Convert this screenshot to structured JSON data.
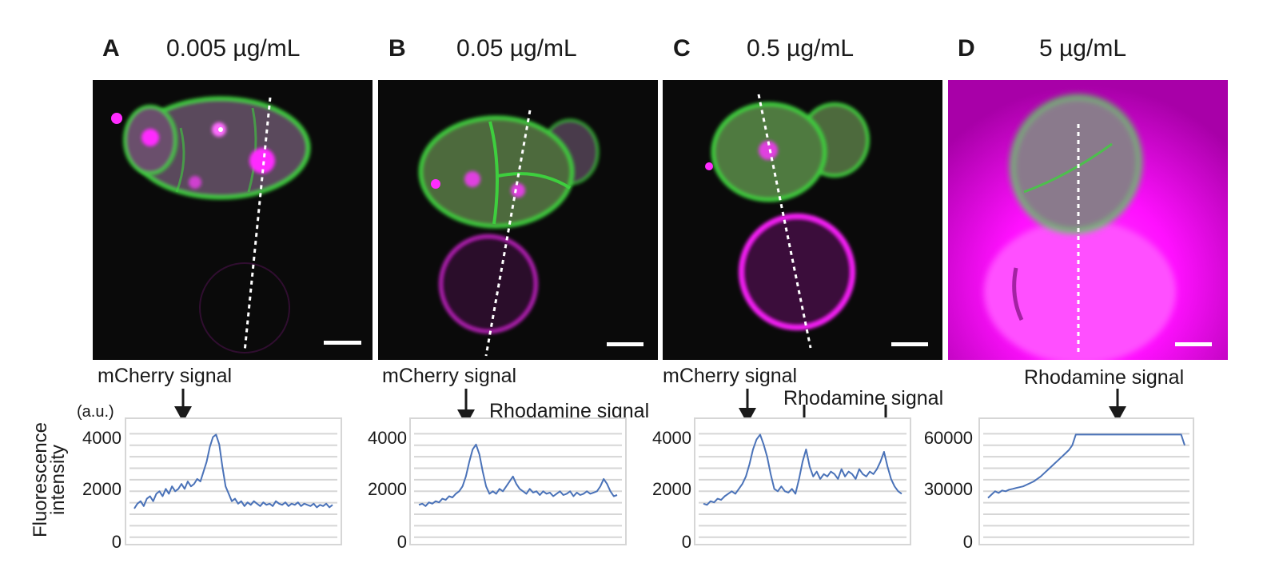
{
  "panels": [
    {
      "letter": "A",
      "concentration": "0.005 µg/mL",
      "signals": [
        {
          "text": "mCherry signal"
        }
      ],
      "yticks": [
        "4000",
        "2000",
        "0"
      ]
    },
    {
      "letter": "B",
      "concentration": "0.05 µg/mL",
      "signals": [
        {
          "text": "mCherry signal"
        },
        {
          "text": "Rhodamine signal"
        }
      ],
      "yticks": [
        "4000",
        "2000",
        "0"
      ]
    },
    {
      "letter": "C",
      "concentration": "0.5 µg/mL",
      "signals": [
        {
          "text": "mCherry signal"
        },
        {
          "text": "Rhodamine signal"
        }
      ],
      "yticks": [
        "4000",
        "2000",
        "0"
      ]
    },
    {
      "letter": "D",
      "concentration": "5 µg/mL",
      "signals": [
        {
          "text": "Rhodamine signal"
        }
      ],
      "yticks": [
        "60000",
        "30000",
        "0"
      ]
    }
  ],
  "y_axis": {
    "label_line1": "Fluorescence",
    "label_line2": "intensity",
    "unit": "(a.u.)"
  },
  "colors": {
    "line": "#4a72b8",
    "grid": "#d6d6d6",
    "membrane": "#3ecf3e",
    "rhodamine": "#ff00ff",
    "background": "#0a0a0a"
  },
  "chart_data": [
    {
      "type": "line",
      "panel": "A",
      "ylim": [
        0,
        4800
      ],
      "yticks": [
        0,
        2000,
        4000
      ],
      "values": [
        1300,
        1500,
        1600,
        1400,
        1700,
        1800,
        1600,
        1900,
        2000,
        1800,
        2100,
        1900,
        2200,
        2000,
        2100,
        2300,
        2100,
        2400,
        2200,
        2300,
        2500,
        2400,
        2800,
        3200,
        3800,
        4200,
        4300,
        3900,
        3000,
        2200,
        1900,
        1600,
        1700,
        1500,
        1600,
        1400,
        1550,
        1450,
        1600,
        1500,
        1400,
        1550,
        1450,
        1500,
        1400,
        1600,
        1500,
        1450,
        1550,
        1400,
        1500,
        1450,
        1550,
        1400,
        1500,
        1450,
        1400,
        1500,
        1350,
        1450,
        1400,
        1500,
        1350,
        1450
      ]
    },
    {
      "type": "line",
      "panel": "B",
      "ylim": [
        0,
        4800
      ],
      "yticks": [
        0,
        2000,
        4000
      ],
      "values": [
        1450,
        1500,
        1400,
        1550,
        1500,
        1600,
        1550,
        1700,
        1650,
        1800,
        1750,
        1900,
        2000,
        2200,
        2600,
        3200,
        3700,
        3900,
        3500,
        2800,
        2200,
        1900,
        2000,
        1900,
        2100,
        2000,
        2200,
        2400,
        2600,
        2300,
        2100,
        2000,
        1900,
        2100,
        1950,
        2000,
        1850,
        2000,
        1900,
        1950,
        1800,
        1900,
        2000,
        1850,
        1900,
        2000,
        1800,
        1950,
        1850,
        1900,
        2000,
        1900,
        1950,
        2000,
        2200,
        2500,
        2300,
        2000,
        1800,
        1850
      ]
    },
    {
      "type": "line",
      "panel": "C",
      "ylim": [
        0,
        4800
      ],
      "yticks": [
        0,
        2000,
        4000
      ],
      "values": [
        1500,
        1450,
        1600,
        1550,
        1700,
        1650,
        1800,
        1900,
        2000,
        1900,
        2100,
        2300,
        2600,
        3100,
        3700,
        4100,
        4300,
        3900,
        3400,
        2700,
        2100,
        2000,
        2200,
        2000,
        1950,
        2100,
        1900,
        2500,
        3200,
        3700,
        3000,
        2600,
        2800,
        2500,
        2700,
        2600,
        2800,
        2700,
        2500,
        2900,
        2600,
        2800,
        2700,
        2500,
        2900,
        2700,
        2600,
        2800,
        2700,
        2900,
        3200,
        3600,
        3000,
        2500,
        2200,
        2000,
        1900
      ]
    },
    {
      "type": "line",
      "panel": "D",
      "ylim": [
        0,
        72000
      ],
      "yticks": [
        0,
        30000,
        60000
      ],
      "values": [
        26000,
        28000,
        30000,
        29000,
        30500,
        30000,
        31000,
        31500,
        32000,
        32500,
        33000,
        34000,
        35000,
        36000,
        37500,
        39000,
        41000,
        43000,
        45000,
        47000,
        49000,
        51000,
        53000,
        55000,
        58000,
        64500,
        64500,
        64500,
        64500,
        64500,
        64500,
        64500,
        64500,
        64500,
        64500,
        64500,
        64500,
        64500,
        64500,
        64500,
        64500,
        64500,
        64500,
        64500,
        64500,
        64500,
        64500,
        64500,
        64500,
        64500,
        64500,
        64500,
        64500,
        64500,
        64500,
        64500,
        58000
      ]
    }
  ]
}
